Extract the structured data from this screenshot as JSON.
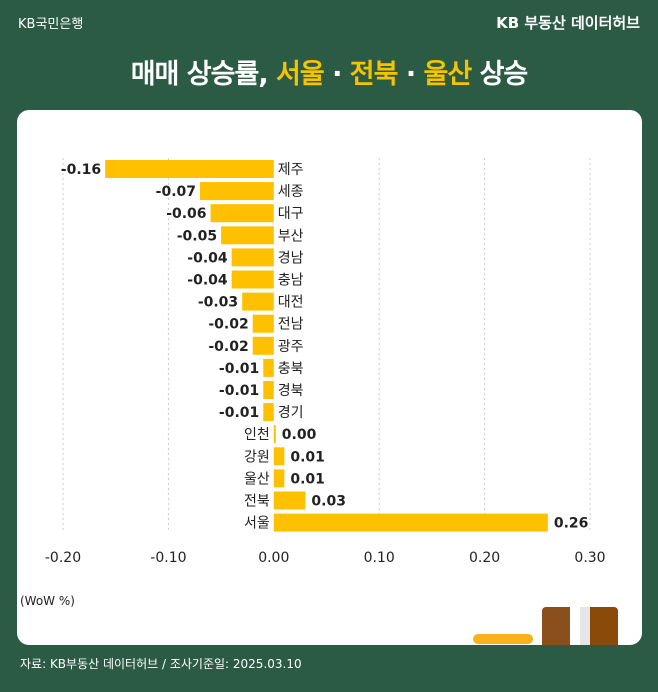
{
  "header": {
    "bank_logo": "KB국민은행",
    "hub": "KB 부동산 데이터허브"
  },
  "title": {
    "prefix": "매매 상승률, ",
    "h1": "서울",
    "sep1": " · ",
    "h2": "전북",
    "sep2": " · ",
    "h3": "울산",
    "suffix": " 상승"
  },
  "footer": {
    "source": "자료: KB부동산 데이터허브 / 조사기준일: 2025.03.10"
  },
  "colors": {
    "bar": "#ffc000",
    "background": "#2b5a45"
  },
  "chart_data": {
    "type": "bar",
    "orientation": "horizontal",
    "categories": [
      "제주",
      "세종",
      "대구",
      "부산",
      "경남",
      "충남",
      "대전",
      "전남",
      "광주",
      "충북",
      "경북",
      "경기",
      "인천",
      "강원",
      "울산",
      "전북",
      "서울"
    ],
    "values": [
      -0.16,
      -0.07,
      -0.06,
      -0.05,
      -0.04,
      -0.04,
      -0.03,
      -0.02,
      -0.02,
      -0.01,
      -0.01,
      -0.01,
      0.0,
      0.01,
      0.01,
      0.03,
      0.26
    ],
    "value_labels": [
      "-0.16",
      "-0.07",
      "-0.06",
      "-0.05",
      "-0.04",
      "-0.04",
      "-0.03",
      "-0.02",
      "-0.02",
      "-0.01",
      "-0.01",
      "-0.01",
      "0.00",
      "0.01",
      "0.01",
      "0.03",
      "0.26"
    ],
    "xticks": [
      "-0.20",
      "-0.10",
      "0.00",
      "0.10",
      "0.20",
      "0.30"
    ],
    "xtick_values": [
      -0.2,
      -0.1,
      0,
      0.1,
      0.2,
      0.3
    ],
    "xlim": [
      -0.2,
      0.3
    ],
    "xlabel": "(WoW %)",
    "grid": "vertical dashed"
  }
}
